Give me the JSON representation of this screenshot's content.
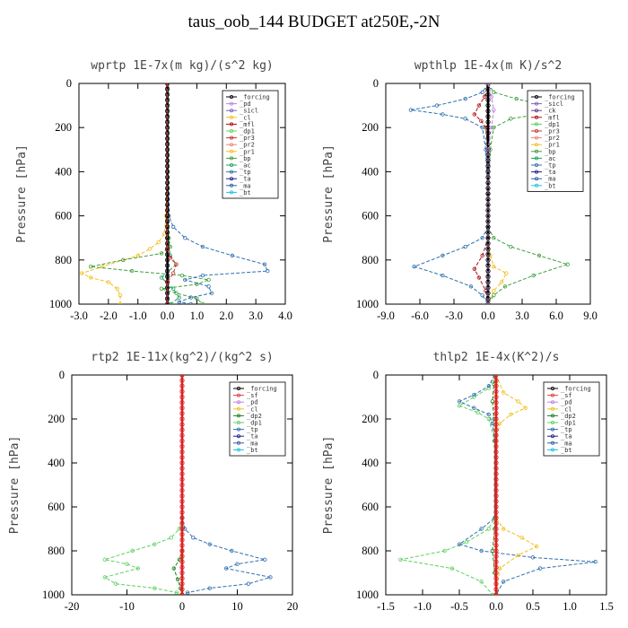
{
  "title": "taus_oob_144  BUDGET at250E,-2N",
  "ylabel": "Pressure [hPa]",
  "chart_data": [
    {
      "type": "line",
      "title": "wprtp  1E-7x(m kg)/(s^2 kg)",
      "ylabel": "Pressure [hPa]",
      "xlim": [
        -3.0,
        4.0
      ],
      "ylim": [
        1000,
        0
      ],
      "xticks": [
        -3.0,
        -2.0,
        -1.0,
        0.0,
        1.0,
        2.0,
        3.0,
        4.0
      ],
      "xtick_labels": [
        "-3.0",
        "-2.0",
        "-1.0",
        "0.0",
        "1.0",
        "2.0",
        "3.0",
        "4.0"
      ],
      "yticks": [
        0,
        200,
        400,
        600,
        800,
        1000
      ],
      "legend": [
        "_forcing",
        "_pd",
        "_sicl",
        "_cl",
        "_mfl",
        "_dp1",
        "_pr3",
        "_pr2",
        "_pr1",
        "_bp",
        "_ac",
        "_tp",
        "_ta",
        "_ma",
        "_bt"
      ],
      "legend_position": "top-right",
      "series": [
        {
          "name": "_pr1",
          "color": "#f0c020",
          "x": [
            0,
            0,
            -0.05,
            -0.1,
            -0.3,
            -0.6,
            -1.0,
            -1.5,
            -2.2,
            -2.9,
            -2.6,
            -2.0,
            -1.7,
            -1.6,
            -1.6
          ],
          "y": [
            0,
            400,
            600,
            680,
            720,
            750,
            780,
            800,
            830,
            860,
            880,
            900,
            930,
            960,
            1000
          ]
        },
        {
          "name": "_bp",
          "color": "#40a040",
          "x": [
            0,
            0,
            0.05,
            0.1,
            -0.2,
            -1.5,
            -2.6,
            -1.2,
            0.5,
            1.4,
            1.0,
            -0.2,
            0.3,
            1.0,
            1.2
          ],
          "y": [
            0,
            600,
            700,
            740,
            770,
            800,
            830,
            850,
            870,
            890,
            910,
            930,
            950,
            975,
            1000
          ]
        },
        {
          "name": "_tp",
          "color": "#3070b0",
          "x": [
            0,
            0.05,
            0.2,
            0.6,
            1.2,
            2.2,
            3.3,
            3.4,
            1.2,
            0.6,
            1.4,
            1.5,
            0.8,
            0.4,
            0.8
          ],
          "y": [
            0,
            600,
            650,
            700,
            740,
            780,
            820,
            850,
            870,
            890,
            920,
            950,
            970,
            990,
            1000
          ]
        },
        {
          "name": "_ac",
          "color": "#20a060",
          "x": [
            0,
            0,
            0.1,
            0.3,
            -0.2,
            0.2,
            0.4,
            0.1
          ],
          "y": [
            0,
            700,
            780,
            820,
            880,
            930,
            970,
            1000
          ]
        },
        {
          "name": "_forcing",
          "color": "#000000",
          "x": [
            0,
            0
          ],
          "y": [
            0,
            1000
          ]
        },
        {
          "name": "_dp1",
          "color": "#d03030",
          "x": [
            0,
            0,
            0.1,
            0.3,
            0.2,
            0.0,
            0.0
          ],
          "y": [
            0,
            750,
            790,
            820,
            860,
            900,
            1000
          ]
        }
      ]
    },
    {
      "type": "line",
      "title": "wpthlp  1E-4x(m K)/s^2",
      "ylabel": "Pressure [hPa]",
      "xlim": [
        -9.0,
        9.0
      ],
      "ylim": [
        1000,
        0
      ],
      "xticks": [
        -9.0,
        -6.0,
        -3.0,
        0.0,
        3.0,
        6.0,
        9.0
      ],
      "xtick_labels": [
        "-9.0",
        "-6.0",
        "-3.0",
        "0.0",
        "3.0",
        "6.0",
        "9.0"
      ],
      "yticks": [
        0,
        200,
        400,
        600,
        800,
        1000
      ],
      "legend": [
        "_forcing",
        "_sicl",
        "_ck",
        "_mfl",
        "_dp1",
        "_pr3",
        "_pr2",
        "_pr1",
        "_bp",
        "_ac",
        "_tp",
        "_ta",
        "_ma",
        "_bt"
      ],
      "legend_position": "top-right",
      "series": [
        {
          "name": "_tp",
          "color": "#3070b0",
          "x": [
            0,
            -0.5,
            -2.0,
            -4.5,
            -6.8,
            -4.0,
            -2.0,
            -0.5,
            -0.2,
            0,
            0,
            -0.5,
            -2.0,
            -4.0,
            -6.5,
            -4.0,
            -1.5,
            -0.5,
            0
          ],
          "y": [
            0,
            40,
            70,
            100,
            120,
            140,
            160,
            200,
            300,
            500,
            650,
            700,
            740,
            780,
            830,
            870,
            920,
            960,
            1000
          ]
        },
        {
          "name": "_bp",
          "color": "#40a040",
          "x": [
            0,
            0.5,
            2.5,
            5.0,
            6.8,
            4.5,
            2.0,
            0.5,
            0.2,
            0,
            0,
            0.5,
            2.0,
            4.5,
            7.0,
            4.0,
            1.5,
            0.5,
            0
          ],
          "y": [
            0,
            40,
            70,
            100,
            120,
            140,
            160,
            200,
            300,
            500,
            650,
            700,
            740,
            780,
            820,
            870,
            920,
            960,
            1000
          ]
        },
        {
          "name": "_pr1",
          "color": "#f0c020",
          "x": [
            0,
            0,
            0.2,
            0.5,
            1.6,
            1.2,
            0.5,
            0
          ],
          "y": [
            0,
            700,
            780,
            830,
            860,
            900,
            940,
            1000
          ]
        },
        {
          "name": "_mfl",
          "color": "#b01010",
          "x": [
            0,
            -0.3,
            -0.8,
            -1.2,
            -0.6,
            -0.2,
            0,
            0,
            -0.5,
            -1.2,
            -0.8,
            -0.2,
            0
          ],
          "y": [
            0,
            60,
            100,
            140,
            170,
            200,
            300,
            700,
            780,
            840,
            880,
            940,
            1000
          ]
        },
        {
          "name": "_forcing",
          "color": "#000000",
          "x": [
            0,
            0
          ],
          "y": [
            0,
            1000
          ]
        },
        {
          "name": "_pd",
          "color": "#c080e0",
          "x": [
            0,
            0.3,
            0.5,
            0.3,
            0,
            0
          ],
          "y": [
            0,
            60,
            120,
            200,
            300,
            1000
          ]
        }
      ]
    },
    {
      "type": "line",
      "title": "rtp2  1E-11x(kg^2)/(kg^2 s)",
      "ylabel": "Pressure [hPa]",
      "xlim": [
        -20,
        20
      ],
      "ylim": [
        1000,
        0
      ],
      "xticks": [
        -20,
        -10,
        0,
        10,
        20
      ],
      "xtick_labels": [
        "-20",
        "-10",
        "0",
        "10",
        "20"
      ],
      "yticks": [
        0,
        200,
        400,
        600,
        800,
        1000
      ],
      "legend": [
        "_forcing",
        "_sf",
        "_pd",
        "_cl",
        "_dp2",
        "_dp1",
        "_tp",
        "_ta",
        "_ma",
        "_bt"
      ],
      "legend_position": "top-right",
      "series": [
        {
          "name": "_dp1",
          "color": "#60d060",
          "x": [
            0,
            0,
            -0.5,
            -2.0,
            -5.0,
            -9.0,
            -14.0,
            -10.0,
            -8.0,
            -14.0,
            -12.0,
            -5.0,
            -1.0,
            0
          ],
          "y": [
            0,
            650,
            700,
            740,
            770,
            800,
            840,
            860,
            880,
            920,
            950,
            970,
            990,
            1000
          ]
        },
        {
          "name": "_tp",
          "color": "#3070b0",
          "x": [
            0,
            0,
            0.5,
            2.0,
            5.0,
            9.0,
            15.0,
            10.0,
            8.0,
            16.0,
            12.0,
            5.0,
            1.0,
            0
          ],
          "y": [
            0,
            650,
            700,
            740,
            770,
            800,
            840,
            860,
            880,
            920,
            950,
            970,
            990,
            1000
          ]
        },
        {
          "name": "_dp2",
          "color": "#208020",
          "x": [
            0,
            0,
            -0.5,
            -1.5,
            -0.8,
            -0.3,
            0
          ],
          "y": [
            0,
            800,
            840,
            880,
            930,
            970,
            1000
          ]
        },
        {
          "name": "_forcing",
          "color": "#e02020",
          "x": [
            0,
            0
          ],
          "y": [
            0,
            1000
          ]
        }
      ]
    },
    {
      "type": "line",
      "title": "thlp2  1E-4x(K^2)/s",
      "ylabel": "Pressure [hPa]",
      "xlim": [
        -1.5,
        1.5
      ],
      "ylim": [
        1000,
        0
      ],
      "xticks": [
        -1.5,
        -1.0,
        -0.5,
        0.0,
        0.5,
        1.0,
        1.5
      ],
      "xtick_labels": [
        "-1.5",
        "-1.0",
        "-0.5",
        "0.0",
        "0.5",
        "1.0",
        "1.5"
      ],
      "yticks": [
        0,
        200,
        400,
        600,
        800,
        1000
      ],
      "legend": [
        "_forcing",
        "_sf",
        "_pd",
        "_cl",
        "_dp2",
        "_dp1",
        "_tp",
        "_ta",
        "_ma",
        "_bt"
      ],
      "legend_position": "top-right",
      "series": [
        {
          "name": "_dp1",
          "color": "#60d060",
          "x": [
            -0.02,
            -0.1,
            -0.3,
            -0.5,
            -0.25,
            -0.1,
            -0.02,
            -0.02,
            -0.1,
            -0.4,
            -0.7,
            -1.3,
            -0.6,
            -0.2,
            -0.05
          ],
          "y": [
            0,
            60,
            100,
            140,
            170,
            200,
            300,
            650,
            700,
            760,
            800,
            840,
            880,
            940,
            1000
          ]
        },
        {
          "name": "_tp",
          "color": "#3070b0",
          "x": [
            -0.02,
            -0.1,
            -0.3,
            -0.5,
            -0.3,
            -0.1,
            -0.05,
            -0.02,
            -0.02,
            -0.2,
            -0.5,
            -0.2,
            0.5,
            1.35,
            0.6,
            0.1,
            0
          ],
          "y": [
            0,
            50,
            90,
            120,
            150,
            180,
            220,
            300,
            650,
            700,
            770,
            800,
            830,
            850,
            880,
            940,
            1000
          ]
        },
        {
          "name": "_cl",
          "color": "#f0c020",
          "x": [
            0,
            0.1,
            0.3,
            0.4,
            0.2,
            0.05,
            0,
            0,
            0.1,
            0.35,
            0.55,
            0.3,
            0.05,
            0
          ],
          "y": [
            0,
            80,
            120,
            150,
            180,
            220,
            300,
            650,
            700,
            740,
            780,
            820,
            880,
            1000
          ]
        },
        {
          "name": "_dp2",
          "color": "#208020",
          "x": [
            -0.02,
            -0.03,
            -0.05,
            -0.03,
            -0.02,
            -0.02,
            -0.05,
            -0.02,
            0
          ],
          "y": [
            0,
            40,
            120,
            200,
            300,
            700,
            800,
            900,
            1000
          ]
        },
        {
          "name": "_forcing",
          "color": "#e02020",
          "x": [
            0,
            0
          ],
          "y": [
            0,
            1000
          ]
        }
      ]
    }
  ]
}
